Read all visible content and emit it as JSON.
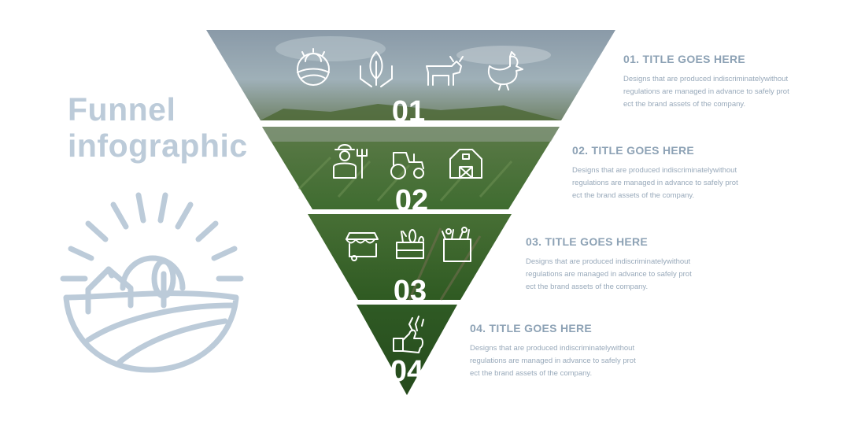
{
  "title": {
    "line1": "Funnel",
    "line2": "infographic"
  },
  "colors": {
    "accent": "#bccbd9",
    "step_title": "#8da2b5",
    "step_text": "#98a9ba"
  },
  "funnel": {
    "levels": [
      {
        "number": "01",
        "icons": [
          "sunrise-field-icon",
          "plant-hands-icon",
          "cow-icon",
          "chicken-icon"
        ]
      },
      {
        "number": "02",
        "icons": [
          "farmer-pitchfork-icon",
          "tractor-icon",
          "barn-icon"
        ]
      },
      {
        "number": "03",
        "icons": [
          "market-stall-icon",
          "vegetable-crate-icon",
          "grocery-bag-icon"
        ]
      },
      {
        "number": "04",
        "icons": [
          "hand-wheat-icon"
        ]
      }
    ]
  },
  "steps": [
    {
      "title": "01. TITLE GOES HERE",
      "description": "Designs that are produced indiscriminatelywithout\nregulations are managed in advance to safely prot\nect the brand assets of the company."
    },
    {
      "title": "02. TITLE GOES HERE",
      "description": "Designs that are produced indiscriminatelywithout\nregulations are managed in advance to safely prot\nect the brand assets of the company."
    },
    {
      "title": "03. TITLE GOES HERE",
      "description": "Designs that are produced indiscriminatelywithout\nregulations are managed in advance to safely prot\nect the brand assets of the company."
    },
    {
      "title": "04. TITLE GOES HERE",
      "description": "Designs that are produced indiscriminatelywithout\nregulations are managed in advance to safely prot\nect the brand assets of the company."
    }
  ]
}
